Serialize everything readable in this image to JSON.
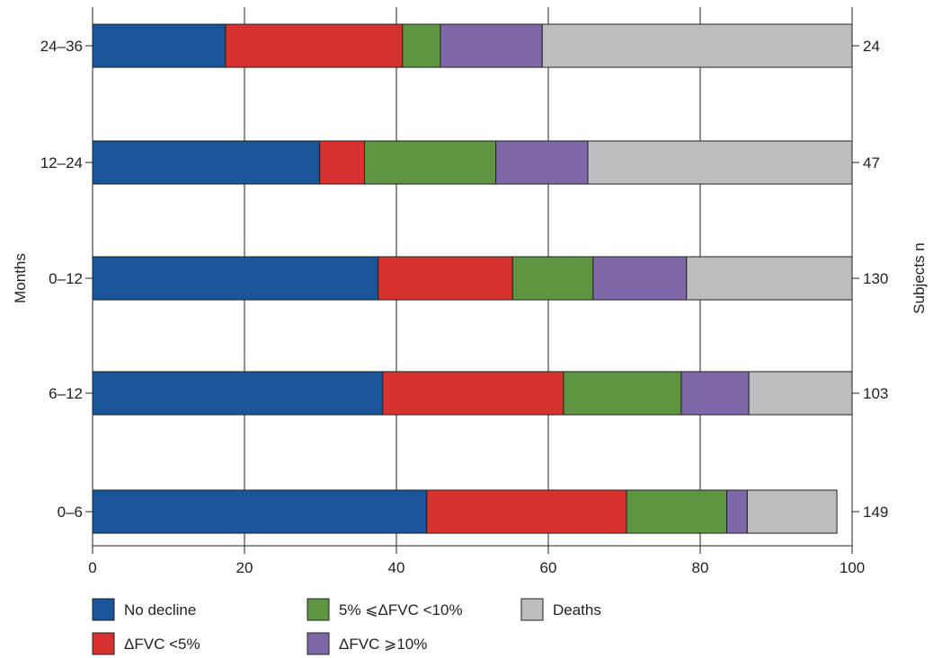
{
  "chart_data": {
    "type": "bar",
    "orientation": "horizontal",
    "stacked": true,
    "categories": [
      "0–6",
      "6–12",
      "0–12",
      "12–24",
      "24–36"
    ],
    "subjects_n": [
      "149",
      "103",
      "130",
      "47",
      "24"
    ],
    "series": [
      {
        "name": "No decline",
        "color": "#1a5499",
        "values": [
          44.0,
          38.2,
          37.6,
          29.9,
          17.5
        ]
      },
      {
        "name": "ΔFVC <5%",
        "color": "#d6322f",
        "values": [
          26.3,
          23.8,
          17.7,
          5.9,
          23.3
        ]
      },
      {
        "name": "5% ⩽ΔFVC <10%",
        "color": "#5f9440",
        "values": [
          13.2,
          15.5,
          10.6,
          17.3,
          5.0
        ]
      },
      {
        "name": "ΔFVC ⩾10%",
        "color": "#7d69a7",
        "values": [
          2.7,
          8.9,
          12.3,
          12.1,
          13.4
        ]
      },
      {
        "name": "Deaths",
        "color": "#bcbdbf",
        "values": [
          11.8,
          13.6,
          21.8,
          34.8,
          40.8
        ]
      }
    ],
    "xlim": [
      0,
      100
    ],
    "xticks": [
      "0",
      "20",
      "40",
      "60",
      "80",
      "100"
    ],
    "xlabel": "",
    "ylabel": "Months",
    "ylabel_right": "Subjects n",
    "grid": "vertical",
    "legend_position": "bottom"
  }
}
